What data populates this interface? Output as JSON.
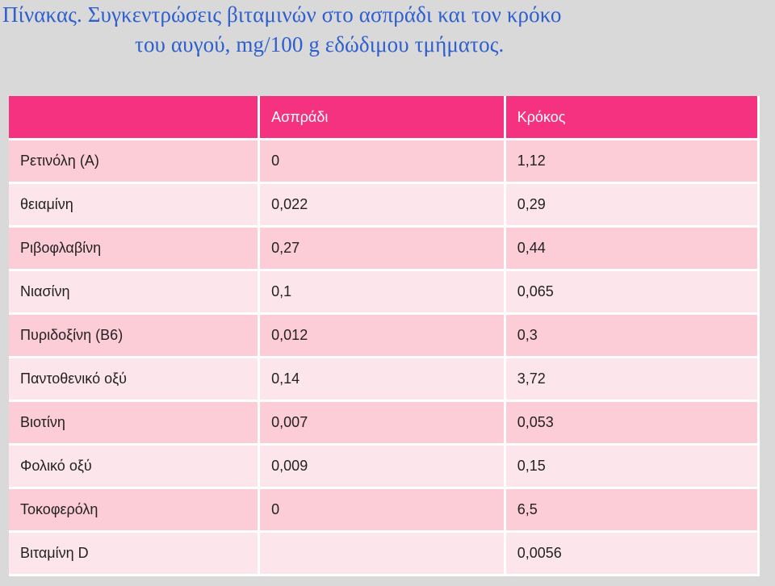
{
  "title": {
    "line1": "Πίνακας. Συγκεντρώσεις βιταμινών στο ασπράδι και τον κρόκο",
    "line2": "του αυγού, mg/100 g εδώδιμου τμήματος."
  },
  "table": {
    "headers": [
      "",
      "Ασπράδι",
      "Κρόκος"
    ],
    "rows": [
      {
        "name": "Ρετινόλη (Α)",
        "white": "0",
        "yolk": "1,12"
      },
      {
        "name": "θειαμίνη",
        "white": "0,022",
        "yolk": "0,29"
      },
      {
        "name": "Ριβοφλαβίνη",
        "white": "0,27",
        "yolk": "0,44"
      },
      {
        "name": "Νιασίνη",
        "white": "0,1",
        "yolk": "0,065"
      },
      {
        "name": "Πυριδοξίνη (Β6)",
        "white": "0,012",
        "yolk": "0,3"
      },
      {
        "name": "Παντοθενικό οξύ",
        "white": "0,14",
        "yolk": "3,72"
      },
      {
        "name": "Βιοτίνη",
        "white": "0,007",
        "yolk": "0,053"
      },
      {
        "name": "Φολικό οξύ",
        "white": "0,009",
        "yolk": "0,15"
      },
      {
        "name": "Τοκοφερόλη",
        "white": "0",
        "yolk": "6,5"
      },
      {
        "name": "Βιταμίνη D",
        "white": "",
        "yolk": "0,0056"
      }
    ]
  },
  "colors": {
    "header": "#f5327f",
    "row_dark": "#fcccd7",
    "row_light": "#fde6eb",
    "title": "#2e5fcf",
    "background": "#d9d9d9"
  }
}
